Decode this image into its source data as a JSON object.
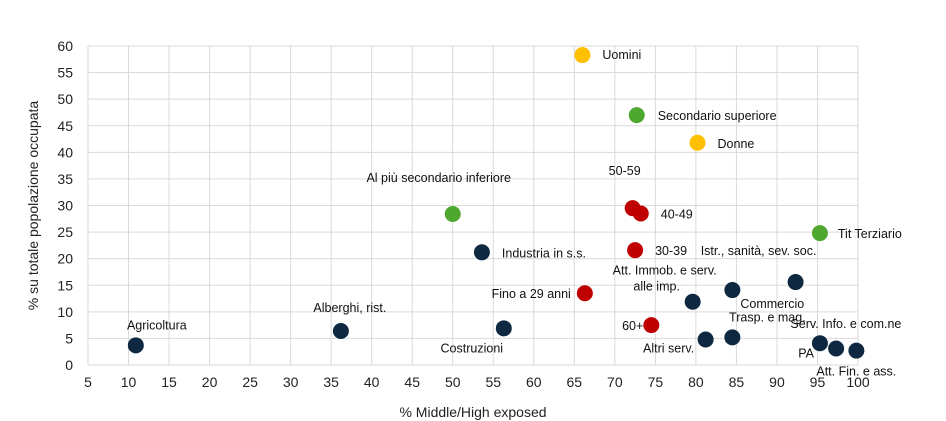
{
  "chart_data": {
    "type": "scatter",
    "title": "",
    "xlabel": "% Middle/High exposed",
    "ylabel": "% su totale popolazione occupata",
    "xlim": [
      5,
      100
    ],
    "ylim": [
      0,
      60
    ],
    "x_ticks": [
      "5",
      "10",
      "15",
      "20",
      "25",
      "30",
      "35",
      "40",
      "45",
      "50",
      "55",
      "60",
      "65",
      "70",
      "75",
      "80",
      "85",
      "90",
      "95",
      "100"
    ],
    "y_ticks": [
      "0",
      "5",
      "10",
      "15",
      "20",
      "25",
      "30",
      "35",
      "40",
      "45",
      "50",
      "55",
      "60"
    ],
    "grid": true,
    "legend": "none",
    "colors": {
      "sector": "#0e2841",
      "gender": "#ffc000",
      "education": "#4ea72e",
      "age": "#c00000"
    },
    "points": [
      {
        "label": "Uomini",
        "x": 66,
        "y": 58.3,
        "group": "gender"
      },
      {
        "label": "Donne",
        "x": 80.2,
        "y": 41.8,
        "group": "gender"
      },
      {
        "label": "Secondario superiore",
        "x": 72.7,
        "y": 47,
        "group": "education"
      },
      {
        "label": "Al più secondario inferiore",
        "x": 50,
        "y": 28.4,
        "group": "education"
      },
      {
        "label": "Tit Terziario",
        "x": 95.3,
        "y": 24.8,
        "group": "education"
      },
      {
        "label": "50-59",
        "x": 72.2,
        "y": 29.5,
        "group": "age"
      },
      {
        "label": "40-49",
        "x": 73.2,
        "y": 28.5,
        "group": "age"
      },
      {
        "label": "30-39",
        "x": 72.5,
        "y": 21.6,
        "group": "age"
      },
      {
        "label": "Fino a 29 anni",
        "x": 66.3,
        "y": 13.5,
        "group": "age"
      },
      {
        "label": "60+",
        "x": 74.5,
        "y": 7.5,
        "group": "age"
      },
      {
        "label": "Agricoltura",
        "x": 10.9,
        "y": 3.7,
        "group": "sector"
      },
      {
        "label": "Alberghi, rist.",
        "x": 36.2,
        "y": 6.4,
        "group": "sector"
      },
      {
        "label": "Costruzioni",
        "x": 56.3,
        "y": 6.9,
        "group": "sector"
      },
      {
        "label": "Industria in s.s.",
        "x": 53.6,
        "y": 21.2,
        "group": "sector"
      },
      {
        "label": "Att. Immob. e serv. alle imp.",
        "x": 79.6,
        "y": 11.9,
        "group": "sector"
      },
      {
        "label": "Commercio",
        "x": 84.5,
        "y": 14.1,
        "group": "sector"
      },
      {
        "label": "Istr., sanità, sev. soc.",
        "x": 92.3,
        "y": 15.6,
        "group": "sector"
      },
      {
        "label": "Trasp. e mag.",
        "x": 84.5,
        "y": 5.2,
        "group": "sector"
      },
      {
        "label": "Altri serv.",
        "x": 81.2,
        "y": 4.8,
        "group": "sector"
      },
      {
        "label": "Serv. Info. e com.ne",
        "x": 95.3,
        "y": 4.1,
        "group": "sector"
      },
      {
        "label": "PA",
        "x": 97.3,
        "y": 3.1,
        "group": "sector"
      },
      {
        "label": "Att. Fin. e ass.",
        "x": 99.8,
        "y": 2.7,
        "group": "sector"
      }
    ]
  }
}
